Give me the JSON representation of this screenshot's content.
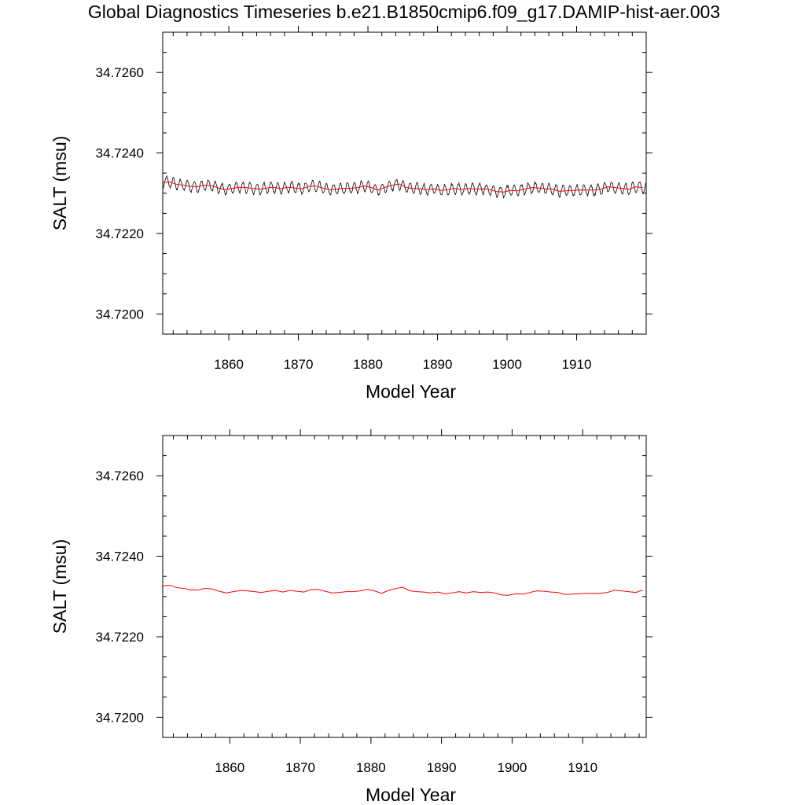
{
  "title": "Global Diagnostics Timeseries b.e21.B1850cmip6.f09_g17.DAMIP-hist-aer.003",
  "colors": {
    "monthly": "#000000",
    "annual": "#ff0000",
    "frame": "#000000"
  },
  "chart_data": [
    {
      "type": "line",
      "title": "",
      "xlabel": "Model Year",
      "ylabel": "SALT (msu)",
      "xlim": [
        1850.5,
        1920
      ],
      "ylim": [
        34.7195,
        34.727
      ],
      "x_ticks": [
        1860,
        1870,
        1880,
        1890,
        1900,
        1910
      ],
      "x_tick_labels": [
        "1860",
        "1870",
        "1880",
        "1890",
        "1900",
        "1910"
      ],
      "y_ticks": [
        34.72,
        34.722,
        34.724,
        34.726
      ],
      "y_tick_labels": [
        "34.7200",
        "34.7220",
        "34.7240",
        "34.7260"
      ],
      "grid": false,
      "series": [
        {
          "key": "monthly",
          "color": "#000000",
          "generator": {
            "x_start": 1850.5,
            "x_end": 1920,
            "step": 0.0833333,
            "mean_from": "annual",
            "seasonal_amplitude": 0.00013,
            "seasonal_phase": 0.2,
            "noise": 3e-05
          }
        },
        {
          "key": "annual",
          "color": "#ff0000",
          "x": [
            1850.5,
            1851.5,
            1852.5,
            1853.5,
            1854.5,
            1855.5,
            1856.5,
            1857.5,
            1858.5,
            1859.5,
            1860.5,
            1861.5,
            1862.5,
            1863.5,
            1864.5,
            1865.5,
            1866.5,
            1867.5,
            1868.5,
            1869.5,
            1870.5,
            1871.5,
            1872.5,
            1873.5,
            1874.5,
            1875.5,
            1876.5,
            1877.5,
            1878.5,
            1879.5,
            1880.5,
            1881.5,
            1882.5,
            1883.5,
            1884.5,
            1885.5,
            1886.5,
            1887.5,
            1888.5,
            1889.5,
            1890.5,
            1891.5,
            1892.5,
            1893.5,
            1894.5,
            1895.5,
            1896.5,
            1897.5,
            1898.5,
            1899.5,
            1900.5,
            1901.5,
            1902.5,
            1903.5,
            1904.5,
            1905.5,
            1906.5,
            1907.5,
            1908.5,
            1909.5,
            1910.5,
            1911.5,
            1912.5,
            1913.5,
            1914.5,
            1915.5,
            1916.5,
            1917.5,
            1918.5,
            1919.5
          ],
          "values": [
            34.72327,
            34.72328,
            34.72322,
            34.7232,
            34.72317,
            34.72316,
            34.7232,
            34.72319,
            34.72313,
            34.72309,
            34.72312,
            34.72315,
            34.72314,
            34.72312,
            34.7231,
            34.72313,
            34.72315,
            34.72311,
            34.72315,
            34.72313,
            34.72311,
            34.72317,
            34.72318,
            34.72313,
            34.72309,
            34.7231,
            34.72312,
            34.72312,
            34.72314,
            34.72318,
            34.72314,
            34.72308,
            34.72315,
            34.7232,
            34.72323,
            34.72314,
            34.72312,
            34.72311,
            34.72309,
            34.72311,
            34.72307,
            34.72309,
            34.72312,
            34.72309,
            34.72312,
            34.7231,
            34.72311,
            34.72309,
            34.72304,
            34.72303,
            34.72307,
            34.72306,
            34.7231,
            34.72314,
            34.72313,
            34.72311,
            34.7231,
            34.72305,
            34.72306,
            34.72307,
            34.72308,
            34.72308,
            34.72308,
            34.7231,
            34.72316,
            34.72314,
            34.72312,
            34.7231,
            34.72316,
            34.72314
          ]
        }
      ]
    },
    {
      "type": "line",
      "title": "",
      "xlabel": "Model Year",
      "ylabel": "SALT (msu)",
      "xlim": [
        1850.5,
        1919
      ],
      "ylim": [
        34.7195,
        34.727
      ],
      "x_ticks": [
        1860,
        1870,
        1880,
        1890,
        1900,
        1910
      ],
      "x_tick_labels": [
        "1860",
        "1870",
        "1880",
        "1890",
        "1900",
        "1910"
      ],
      "y_ticks": [
        34.72,
        34.722,
        34.724,
        34.726
      ],
      "y_tick_labels": [
        "34.7200",
        "34.7220",
        "34.7240",
        "34.7260"
      ],
      "grid": false,
      "series": [
        {
          "key": "annual",
          "color": "#ff0000",
          "x": [
            1850.5,
            1851.5,
            1852.5,
            1853.5,
            1854.5,
            1855.5,
            1856.5,
            1857.5,
            1858.5,
            1859.5,
            1860.5,
            1861.5,
            1862.5,
            1863.5,
            1864.5,
            1865.5,
            1866.5,
            1867.5,
            1868.5,
            1869.5,
            1870.5,
            1871.5,
            1872.5,
            1873.5,
            1874.5,
            1875.5,
            1876.5,
            1877.5,
            1878.5,
            1879.5,
            1880.5,
            1881.5,
            1882.5,
            1883.5,
            1884.5,
            1885.5,
            1886.5,
            1887.5,
            1888.5,
            1889.5,
            1890.5,
            1891.5,
            1892.5,
            1893.5,
            1894.5,
            1895.5,
            1896.5,
            1897.5,
            1898.5,
            1899.5,
            1900.5,
            1901.5,
            1902.5,
            1903.5,
            1904.5,
            1905.5,
            1906.5,
            1907.5,
            1908.5,
            1909.5,
            1910.5,
            1911.5,
            1912.5,
            1913.5,
            1914.5,
            1915.5,
            1916.5,
            1917.5,
            1918.5
          ],
          "values": [
            34.72327,
            34.72328,
            34.72322,
            34.7232,
            34.72317,
            34.72316,
            34.7232,
            34.72319,
            34.72313,
            34.72309,
            34.72312,
            34.72315,
            34.72314,
            34.72312,
            34.7231,
            34.72313,
            34.72315,
            34.72311,
            34.72315,
            34.72313,
            34.72311,
            34.72317,
            34.72318,
            34.72313,
            34.72309,
            34.7231,
            34.72312,
            34.72312,
            34.72314,
            34.72318,
            34.72314,
            34.72308,
            34.72315,
            34.7232,
            34.72323,
            34.72314,
            34.72312,
            34.72311,
            34.72309,
            34.72311,
            34.72307,
            34.72309,
            34.72312,
            34.72309,
            34.72312,
            34.7231,
            34.72311,
            34.72309,
            34.72304,
            34.72303,
            34.72307,
            34.72306,
            34.7231,
            34.72314,
            34.72313,
            34.72311,
            34.7231,
            34.72305,
            34.72306,
            34.72307,
            34.72308,
            34.72308,
            34.72308,
            34.7231,
            34.72316,
            34.72314,
            34.72312,
            34.7231,
            34.72316
          ]
        }
      ]
    }
  ]
}
